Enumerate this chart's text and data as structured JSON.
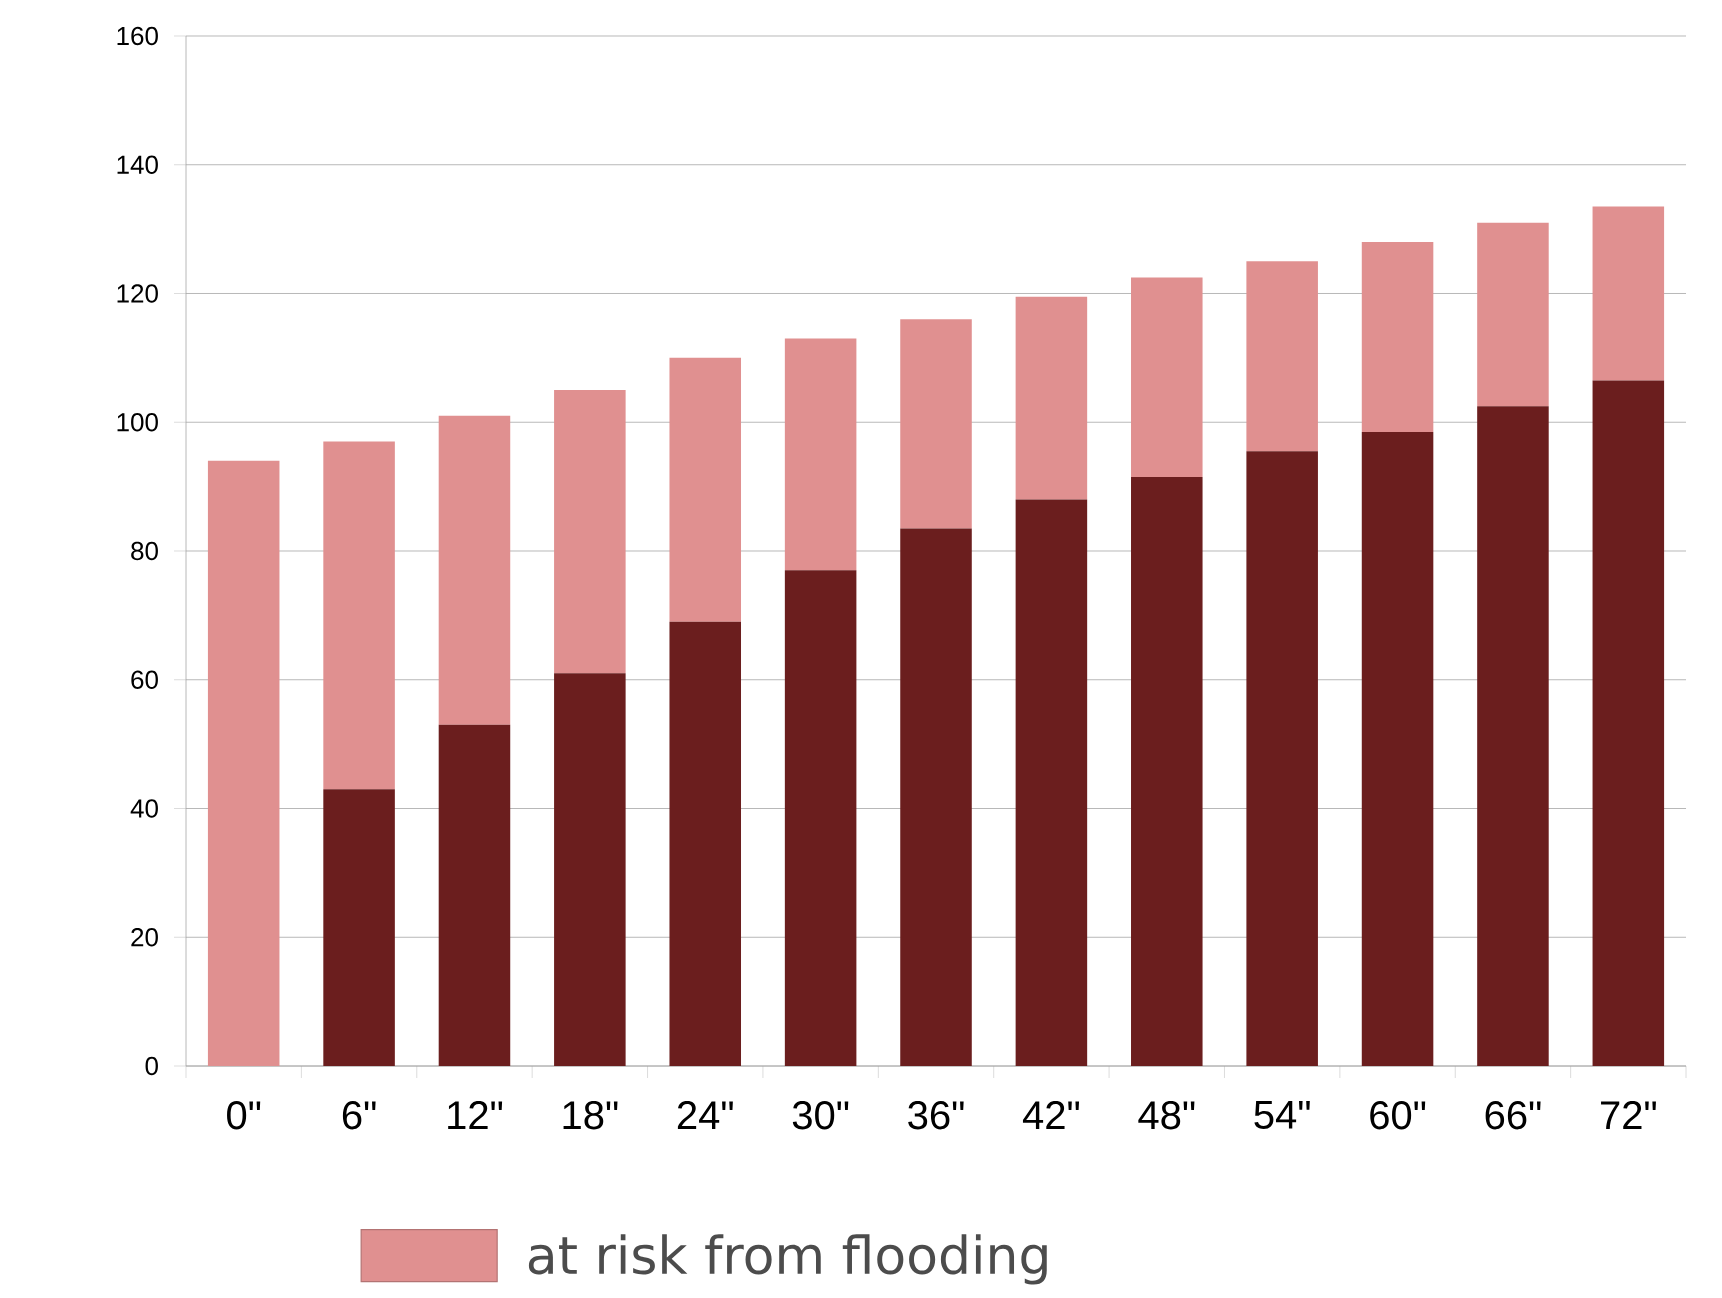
{
  "chart_data": {
    "type": "bar",
    "stacked": true,
    "categories": [
      "0\"",
      "6\"",
      "12\"",
      "18\"",
      "24\"",
      "30\"",
      "36\"",
      "42\"",
      "48\"",
      "54\"",
      "60\"",
      "66\"",
      "72\""
    ],
    "series": [
      {
        "color": "#6b1e1e",
        "values": [
          0,
          43,
          53,
          61,
          69,
          77,
          83.5,
          88,
          91.5,
          95.5,
          98.5,
          102.5,
          106.5
        ]
      },
      {
        "name": "at risk from flooding",
        "color": "#e09090",
        "values": [
          94,
          54,
          48,
          44,
          41,
          36,
          32.5,
          31.5,
          31,
          29.5,
          29.5,
          28.5,
          27
        ]
      }
    ],
    "ylim": [
      0,
      160
    ],
    "yticks": [
      0,
      20,
      40,
      60,
      80,
      100,
      120,
      140,
      160
    ],
    "grid": "y",
    "legend": "bottom"
  }
}
